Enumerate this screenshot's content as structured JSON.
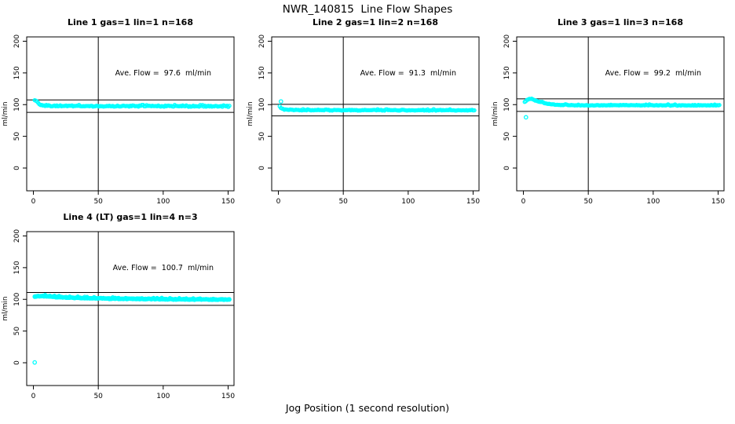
{
  "figure": {
    "title": "NWR_140815  Line Flow Shapes",
    "xlabel": "Jog Position (1 second resolution)"
  },
  "colors": {
    "points": "#00FFFF",
    "axis": "#000000",
    "background": "#FFFFFF"
  },
  "chart_data": [
    {
      "type": "scatter",
      "title": "Line 1 gas=1 lin=1 n=168",
      "n": 168,
      "ave_flow": 97.6,
      "ave_flow_label": "Ave. Flow =  97.6  ml/min",
      "ylabel": "ml/min",
      "x_ticks": [
        0,
        50,
        100,
        150
      ],
      "y_ticks": [
        0,
        50,
        100,
        150,
        200
      ],
      "xlim": [
        0,
        150
      ],
      "ylim": [
        -36,
        206
      ],
      "vline_x": 50,
      "hlines": [
        107.4,
        87.8
      ],
      "grid": {
        "row": 0,
        "col": 0
      },
      "series": [
        {
          "name": "flow",
          "keypoints": [
            [
              1,
              107
            ],
            [
              2,
              106.5
            ],
            [
              3,
              104
            ],
            [
              4,
              101.5
            ],
            [
              5,
              100
            ],
            [
              7,
              98.8
            ],
            [
              10,
              98.2
            ],
            [
              20,
              97.9
            ],
            [
              40,
              97.7
            ],
            [
              80,
              97.6
            ],
            [
              120,
              97.5
            ],
            [
              151,
              97.3
            ]
          ],
          "noise": 1.1,
          "n_points": 168,
          "x_start": 1,
          "x_end": 151,
          "seed": 11,
          "traces": 1
        }
      ],
      "outliers": []
    },
    {
      "type": "scatter",
      "title": "Line 2 gas=1 lin=2 n=168",
      "n": 168,
      "ave_flow": 91.3,
      "ave_flow_label": "Ave. Flow =  91.3  ml/min",
      "ylabel": "ml/min",
      "x_ticks": [
        0,
        50,
        100,
        150
      ],
      "y_ticks": [
        0,
        50,
        100,
        150,
        200
      ],
      "xlim": [
        0,
        150
      ],
      "ylim": [
        -36,
        206
      ],
      "vline_x": 50,
      "hlines": [
        100.4,
        82.2
      ],
      "grid": {
        "row": 0,
        "col": 1
      },
      "series": [
        {
          "name": "flow",
          "keypoints": [
            [
              1,
              97
            ],
            [
              2,
              95
            ],
            [
              3,
              93.5
            ],
            [
              5,
              92.3
            ],
            [
              8,
              91.7
            ],
            [
              15,
              91.4
            ],
            [
              60,
              91.3
            ],
            [
              151,
              91.2
            ]
          ],
          "noise": 0.8,
          "n_points": 168,
          "x_start": 1,
          "x_end": 151,
          "seed": 23,
          "traces": 1
        }
      ],
      "outliers": [
        [
          2,
          105
        ]
      ]
    },
    {
      "type": "scatter",
      "title": "Line 3 gas=1 lin=3 n=168",
      "n": 168,
      "ave_flow": 99.2,
      "ave_flow_label": "Ave. Flow =  99.2  ml/min",
      "ylabel": "ml/min",
      "x_ticks": [
        0,
        50,
        100,
        150
      ],
      "y_ticks": [
        0,
        50,
        100,
        150,
        200
      ],
      "xlim": [
        0,
        150
      ],
      "ylim": [
        -36,
        206
      ],
      "vline_x": 50,
      "hlines": [
        109.1,
        89.3
      ],
      "grid": {
        "row": 0,
        "col": 2
      },
      "series": [
        {
          "name": "flow",
          "keypoints": [
            [
              1,
              104.5
            ],
            [
              2,
              105.5
            ],
            [
              3,
              107.5
            ],
            [
              4,
              109
            ],
            [
              6,
              109.3
            ],
            [
              8,
              107.8
            ],
            [
              10,
              106
            ],
            [
              13,
              104
            ],
            [
              16,
              102.3
            ],
            [
              20,
              100.8
            ],
            [
              25,
              99.7
            ],
            [
              32,
              99.2
            ],
            [
              50,
              99
            ],
            [
              151,
              98.9
            ]
          ],
          "noise": 0.7,
          "n_points": 168,
          "x_start": 1,
          "x_end": 151,
          "seed": 37,
          "traces": 1
        }
      ],
      "outliers": [
        [
          2,
          80
        ]
      ]
    },
    {
      "type": "scatter",
      "title": "Line 4 (LT) gas=1 lin=4 n=3",
      "n": 3,
      "ave_flow": 100.7,
      "ave_flow_label": "Ave. Flow =  100.7  ml/min",
      "ylabel": "ml/min",
      "x_ticks": [
        0,
        50,
        100,
        150
      ],
      "y_ticks": [
        0,
        50,
        100,
        150,
        200
      ],
      "xlim": [
        0,
        150
      ],
      "ylim": [
        -36,
        206
      ],
      "vline_x": 50,
      "hlines": [
        110.8,
        90.6
      ],
      "grid": {
        "row": 1,
        "col": 0
      },
      "series": [
        {
          "name": "flow",
          "keypoints": [
            [
              1,
              104.5
            ],
            [
              3,
              105.3
            ],
            [
              6,
              105.3
            ],
            [
              10,
              104.8
            ],
            [
              15,
              104.2
            ],
            [
              22,
              103.4
            ],
            [
              30,
              102.7
            ],
            [
              40,
              102
            ],
            [
              55,
              101.4
            ],
            [
              70,
              101
            ],
            [
              90,
              100.6
            ],
            [
              110,
              100.2
            ],
            [
              130,
              99.9
            ],
            [
              151,
              99.6
            ]
          ],
          "noise": 1.0,
          "n_points": 168,
          "x_start": 1,
          "x_end": 151,
          "seed": 51,
          "traces": 3
        }
      ],
      "outliers": [
        [
          1,
          0.5
        ]
      ]
    }
  ]
}
